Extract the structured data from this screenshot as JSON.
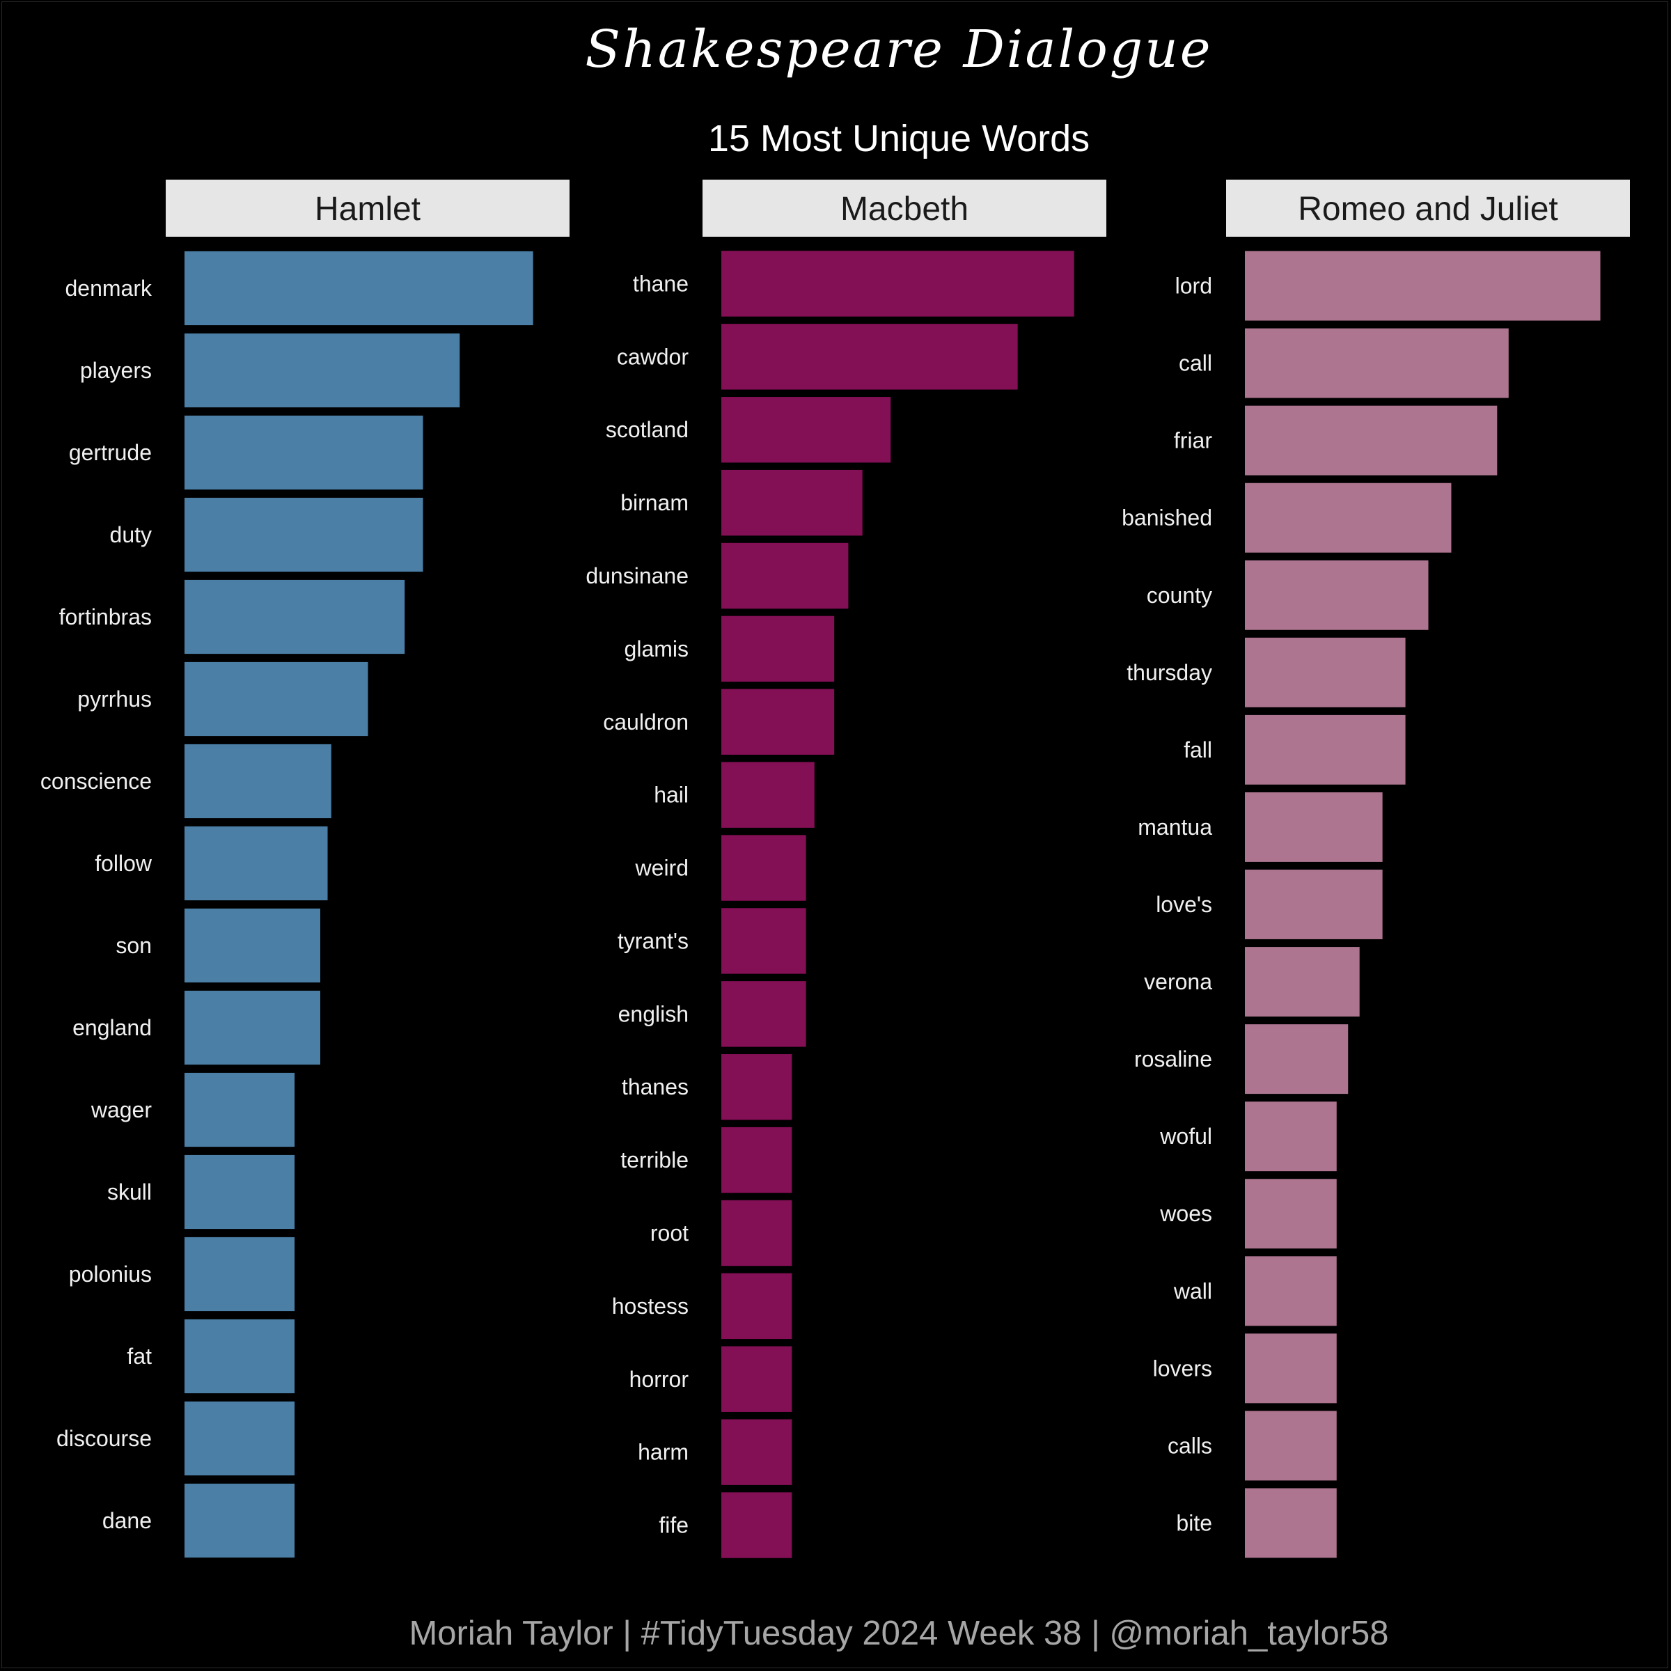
{
  "title": "Shakespeare Dialogue",
  "subtitle": "15 Most Unique Words",
  "caption": "Moriah Taylor | #TidyTuesday 2024 Week 38 | @moriah_taylor58",
  "colors": {
    "background": "#000000",
    "strip": "#e6e6e6",
    "hamlet": "#4b7fa6",
    "macbeth": "#830f55",
    "romeo": "#ad758f"
  },
  "chart_data": [
    {
      "type": "bar",
      "orientation": "horizontal",
      "panel": "Hamlet",
      "color": "#4b7fa6",
      "categories": [
        "denmark",
        "players",
        "gertrude",
        "duty",
        "fortinbras",
        "pyrrhus",
        "conscience",
        "follow",
        "son",
        "england",
        "wager",
        "skull",
        "polonius",
        "fat",
        "discourse",
        "dane"
      ],
      "values": [
        19,
        15,
        13,
        13,
        12,
        10,
        8,
        7.8,
        7.4,
        7.4,
        6,
        6,
        6,
        6,
        6,
        6
      ],
      "xlim": [
        0,
        20
      ]
    },
    {
      "type": "bar",
      "orientation": "horizontal",
      "panel": "Macbeth",
      "color": "#830f55",
      "categories": [
        "thane",
        "cawdor",
        "scotland",
        "birnam",
        "dunsinane",
        "glamis",
        "cauldron",
        "hail",
        "weird",
        "tyrant's",
        "english",
        "thanes",
        "terrible",
        "root",
        "hostess",
        "horror",
        "harm",
        "fife"
      ],
      "values": [
        25,
        21,
        12,
        10,
        9,
        8,
        8,
        6.6,
        6,
        6,
        6,
        5,
        5,
        5,
        5,
        5,
        5,
        5
      ],
      "xlim": [
        0,
        26
      ]
    },
    {
      "type": "bar",
      "orientation": "horizontal",
      "panel": "Romeo and Juliet",
      "color": "#ad758f",
      "categories": [
        "lord",
        "call",
        "friar",
        "banished",
        "county",
        "thursday",
        "fall",
        "mantua",
        "love's",
        "verona",
        "rosaline",
        "woful",
        "woes",
        "wall",
        "lovers",
        "calls",
        "bite"
      ],
      "values": [
        31,
        23,
        22,
        18,
        16,
        14,
        14,
        12,
        12,
        10,
        9,
        8,
        8,
        8,
        8,
        8,
        8
      ],
      "xlim": [
        0,
        32
      ]
    }
  ]
}
